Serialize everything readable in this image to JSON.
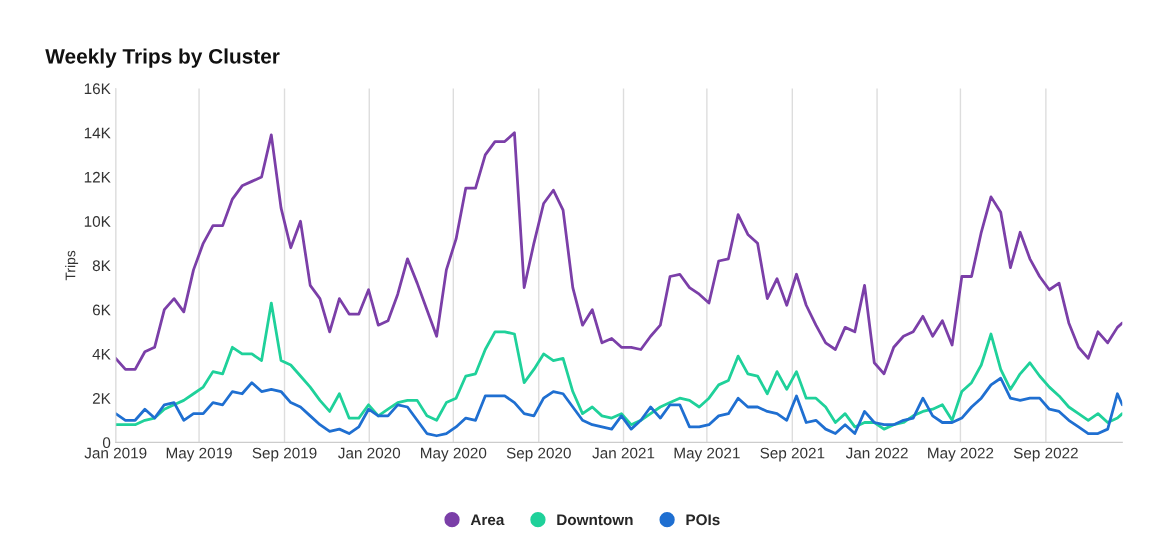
{
  "chart_data": {
    "type": "line",
    "title": "Weekly Trips by Cluster",
    "ylabel": "Trips",
    "x": [
      "2019-01-01",
      "2019-01-15",
      "2019-01-29",
      "2019-02-12",
      "2019-02-26",
      "2019-03-12",
      "2019-03-26",
      "2019-04-09",
      "2019-04-23",
      "2019-05-07",
      "2019-05-21",
      "2019-06-04",
      "2019-06-18",
      "2019-07-02",
      "2019-07-16",
      "2019-07-30",
      "2019-08-13",
      "2019-08-27",
      "2019-09-10",
      "2019-09-24",
      "2019-10-08",
      "2019-10-22",
      "2019-11-05",
      "2019-11-19",
      "2019-12-03",
      "2019-12-17",
      "2019-12-31",
      "2020-01-14",
      "2020-01-28",
      "2020-02-11",
      "2020-02-25",
      "2020-03-10",
      "2020-03-24",
      "2020-04-07",
      "2020-04-21",
      "2020-05-05",
      "2020-05-19",
      "2020-06-02",
      "2020-06-16",
      "2020-06-30",
      "2020-07-14",
      "2020-07-28",
      "2020-08-11",
      "2020-08-25",
      "2020-09-08",
      "2020-09-22",
      "2020-10-06",
      "2020-10-20",
      "2020-11-03",
      "2020-11-17",
      "2020-12-01",
      "2020-12-15",
      "2020-12-29",
      "2021-01-12",
      "2021-01-26",
      "2021-02-09",
      "2021-02-23",
      "2021-03-09",
      "2021-03-23",
      "2021-04-06",
      "2021-04-20",
      "2021-05-04",
      "2021-05-18",
      "2021-06-01",
      "2021-06-15",
      "2021-06-29",
      "2021-07-13",
      "2021-07-27",
      "2021-08-10",
      "2021-08-24",
      "2021-09-07",
      "2021-09-21",
      "2021-10-05",
      "2021-10-19",
      "2021-11-02",
      "2021-11-16",
      "2021-11-30",
      "2021-12-14",
      "2021-12-28",
      "2022-01-11",
      "2022-01-25",
      "2022-02-08",
      "2022-02-22",
      "2022-03-08",
      "2022-03-22",
      "2022-04-05",
      "2022-04-19",
      "2022-05-03",
      "2022-05-17",
      "2022-05-31",
      "2022-06-14",
      "2022-06-28",
      "2022-07-12",
      "2022-07-26",
      "2022-08-09",
      "2022-08-23",
      "2022-09-06",
      "2022-09-20",
      "2022-10-04",
      "2022-10-18",
      "2022-11-01",
      "2022-11-15",
      "2022-11-29",
      "2022-12-13",
      "2022-12-20"
    ],
    "series": [
      {
        "name": "Area",
        "color": "#7b3fa8",
        "values": [
          3800,
          3300,
          3300,
          4100,
          4300,
          6000,
          6500,
          5900,
          7800,
          9000,
          9800,
          9800,
          11000,
          11600,
          11800,
          12000,
          13900,
          10600,
          8800,
          10000,
          7100,
          6500,
          5000,
          6500,
          5800,
          5800,
          6900,
          5300,
          5500,
          6700,
          8300,
          7200,
          6000,
          4800,
          7800,
          9200,
          11500,
          11500,
          13000,
          13600,
          13600,
          14000,
          7000,
          9000,
          10800,
          11400,
          10500,
          7000,
          5300,
          6000,
          4500,
          4700,
          4300,
          4300,
          4200,
          4800,
          5300,
          7500,
          7600,
          7000,
          6700,
          6300,
          8200,
          8300,
          10300,
          9400,
          9000,
          6500,
          7400,
          6200,
          7600,
          6200,
          5300,
          4500,
          4200,
          5200,
          5000,
          7100,
          3600,
          3100,
          4300,
          4800,
          5000,
          5700,
          4800,
          5500,
          4400,
          7500,
          7500,
          9500,
          11100,
          10400,
          7900,
          9500,
          8300,
          7500,
          6900,
          7200,
          5400,
          4300,
          3800,
          5000,
          4500,
          5200,
          5400
        ]
      },
      {
        "name": "Downtown",
        "color": "#1fd19a",
        "values": [
          800,
          800,
          800,
          1000,
          1100,
          1500,
          1700,
          1900,
          2200,
          2500,
          3200,
          3100,
          4300,
          4000,
          4000,
          3700,
          6300,
          3700,
          3500,
          3000,
          2500,
          1900,
          1400,
          2200,
          1100,
          1100,
          1700,
          1200,
          1500,
          1800,
          1900,
          1900,
          1200,
          1000,
          1800,
          2000,
          3000,
          3100,
          4200,
          5000,
          5000,
          4900,
          2700,
          3300,
          4000,
          3700,
          3800,
          2300,
          1300,
          1600,
          1200,
          1100,
          1300,
          800,
          1000,
          1300,
          1600,
          1800,
          2000,
          1900,
          1600,
          2000,
          2600,
          2800,
          3900,
          3100,
          3000,
          2200,
          3200,
          2400,
          3200,
          2000,
          2000,
          1600,
          900,
          1300,
          700,
          900,
          900,
          600,
          800,
          900,
          1200,
          1400,
          1500,
          1700,
          1000,
          2300,
          2700,
          3500,
          4900,
          3300,
          2400,
          3100,
          3600,
          3000,
          2500,
          2100,
          1600,
          1300,
          1000,
          1300,
          900,
          1100,
          1300
        ]
      },
      {
        "name": "POIs",
        "color": "#1f6fd1",
        "values": [
          1300,
          1000,
          1000,
          1500,
          1100,
          1700,
          1800,
          1000,
          1300,
          1300,
          1800,
          1700,
          2300,
          2200,
          2700,
          2300,
          2400,
          2300,
          1800,
          1600,
          1200,
          800,
          500,
          600,
          400,
          700,
          1500,
          1200,
          1200,
          1700,
          1600,
          1000,
          400,
          300,
          400,
          700,
          1100,
          1000,
          2100,
          2100,
          2100,
          1800,
          1300,
          1200,
          2000,
          2300,
          2200,
          1600,
          1000,
          800,
          700,
          600,
          1200,
          600,
          1000,
          1600,
          1100,
          1700,
          1700,
          700,
          700,
          800,
          1200,
          1300,
          2000,
          1600,
          1600,
          1400,
          1300,
          1000,
          2100,
          900,
          1000,
          600,
          400,
          800,
          400,
          1400,
          900,
          800,
          800,
          1000,
          1100,
          2000,
          1200,
          900,
          900,
          1100,
          1600,
          2000,
          2600,
          2900,
          2000,
          1900,
          2000,
          2000,
          1500,
          1400,
          1000,
          700,
          400,
          400,
          600,
          2200,
          1700
        ]
      }
    ],
    "xlim": [
      "2019-01-01",
      "2022-12-20"
    ],
    "xticks": [
      {
        "value": "2019-01-01",
        "label": "Jan 2019"
      },
      {
        "value": "2019-05-01",
        "label": "May 2019"
      },
      {
        "value": "2019-09-01",
        "label": "Sep 2019"
      },
      {
        "value": "2020-01-01",
        "label": "Jan 2020"
      },
      {
        "value": "2020-05-01",
        "label": "May 2020"
      },
      {
        "value": "2020-09-01",
        "label": "Sep 2020"
      },
      {
        "value": "2021-01-01",
        "label": "Jan 2021"
      },
      {
        "value": "2021-05-01",
        "label": "May 2021"
      },
      {
        "value": "2021-09-01",
        "label": "Sep 2021"
      },
      {
        "value": "2022-01-01",
        "label": "Jan 2022"
      },
      {
        "value": "2022-05-01",
        "label": "May 2022"
      },
      {
        "value": "2022-09-01",
        "label": "Sep 2022"
      }
    ],
    "ylim": [
      0,
      16000
    ],
    "yticks": [
      0,
      {
        "value": 2000,
        "label": "2K"
      },
      {
        "value": 4000,
        "label": "4K"
      },
      {
        "value": 6000,
        "label": "6K"
      },
      {
        "value": 8000,
        "label": "8K"
      },
      {
        "value": 10000,
        "label": "10K"
      },
      {
        "value": 12000,
        "label": "12K"
      },
      {
        "value": 14000,
        "label": "14K"
      },
      {
        "value": 16000,
        "label": "16K"
      }
    ],
    "grid": "x",
    "legend": "bottom",
    "marker": "none",
    "line_style": "solid"
  }
}
